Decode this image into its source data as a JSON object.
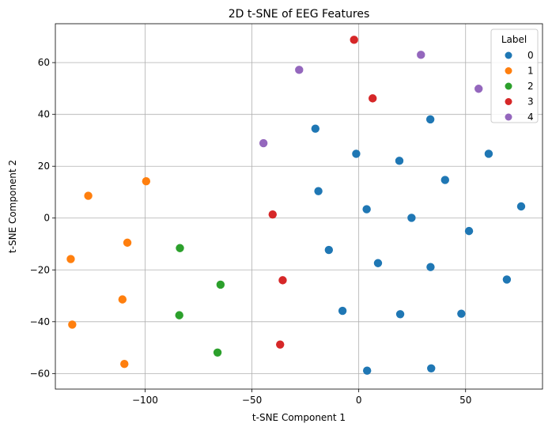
{
  "chart_data": {
    "type": "scatter",
    "title": "2D t-SNE of EEG Features",
    "xlabel": "t-SNE Component 1",
    "ylabel": "t-SNE Component 2",
    "xlim": [
      -142,
      86
    ],
    "ylim": [
      -66,
      75
    ],
    "xticks": [
      -100,
      -50,
      0,
      50
    ],
    "yticks": [
      -60,
      -40,
      -20,
      0,
      20,
      40,
      60
    ],
    "grid": true,
    "legend": {
      "title": "Label",
      "position": "top-right"
    },
    "series": [
      {
        "name": "0",
        "color": "#1f77b4",
        "points": [
          [
            33.5,
            38.1
          ],
          [
            -20.3,
            34.5
          ],
          [
            60.8,
            24.8
          ],
          [
            -1.2,
            24.8
          ],
          [
            19.0,
            22.1
          ],
          [
            40.4,
            14.7
          ],
          [
            -18.9,
            10.4
          ],
          [
            76.0,
            4.5
          ],
          [
            3.7,
            3.4
          ],
          [
            24.7,
            0.1
          ],
          [
            51.6,
            -5.0
          ],
          [
            -14.0,
            -12.3
          ],
          [
            9.0,
            -17.4
          ],
          [
            33.6,
            -18.9
          ],
          [
            69.3,
            -23.7
          ],
          [
            -7.6,
            -35.8
          ],
          [
            19.4,
            -37.1
          ],
          [
            48.0,
            -36.9
          ],
          [
            33.9,
            -58.0
          ],
          [
            3.9,
            -58.9
          ]
        ]
      },
      {
        "name": "1",
        "color": "#ff7f0e",
        "points": [
          [
            -99.5,
            14.2
          ],
          [
            -126.6,
            8.6
          ],
          [
            -108.3,
            -9.5
          ],
          [
            -134.8,
            -15.8
          ],
          [
            -110.6,
            -31.4
          ],
          [
            -134.1,
            -41.1
          ],
          [
            -109.7,
            -56.3
          ]
        ]
      },
      {
        "name": "2",
        "color": "#2ca02c",
        "points": [
          [
            -83.7,
            -11.6
          ],
          [
            -64.7,
            -25.7
          ],
          [
            -84.0,
            -37.5
          ],
          [
            -66.1,
            -51.9
          ]
        ]
      },
      {
        "name": "3",
        "color": "#d62728",
        "points": [
          [
            -2.2,
            68.8
          ],
          [
            6.5,
            46.2
          ],
          [
            -40.3,
            1.4
          ],
          [
            -35.6,
            -24.0
          ],
          [
            -36.8,
            -48.8
          ]
        ]
      },
      {
        "name": "4",
        "color": "#9467bd",
        "points": [
          [
            29.1,
            63.0
          ],
          [
            -27.9,
            57.2
          ],
          [
            56.1,
            49.9
          ],
          [
            -44.6,
            28.9
          ]
        ]
      }
    ]
  }
}
